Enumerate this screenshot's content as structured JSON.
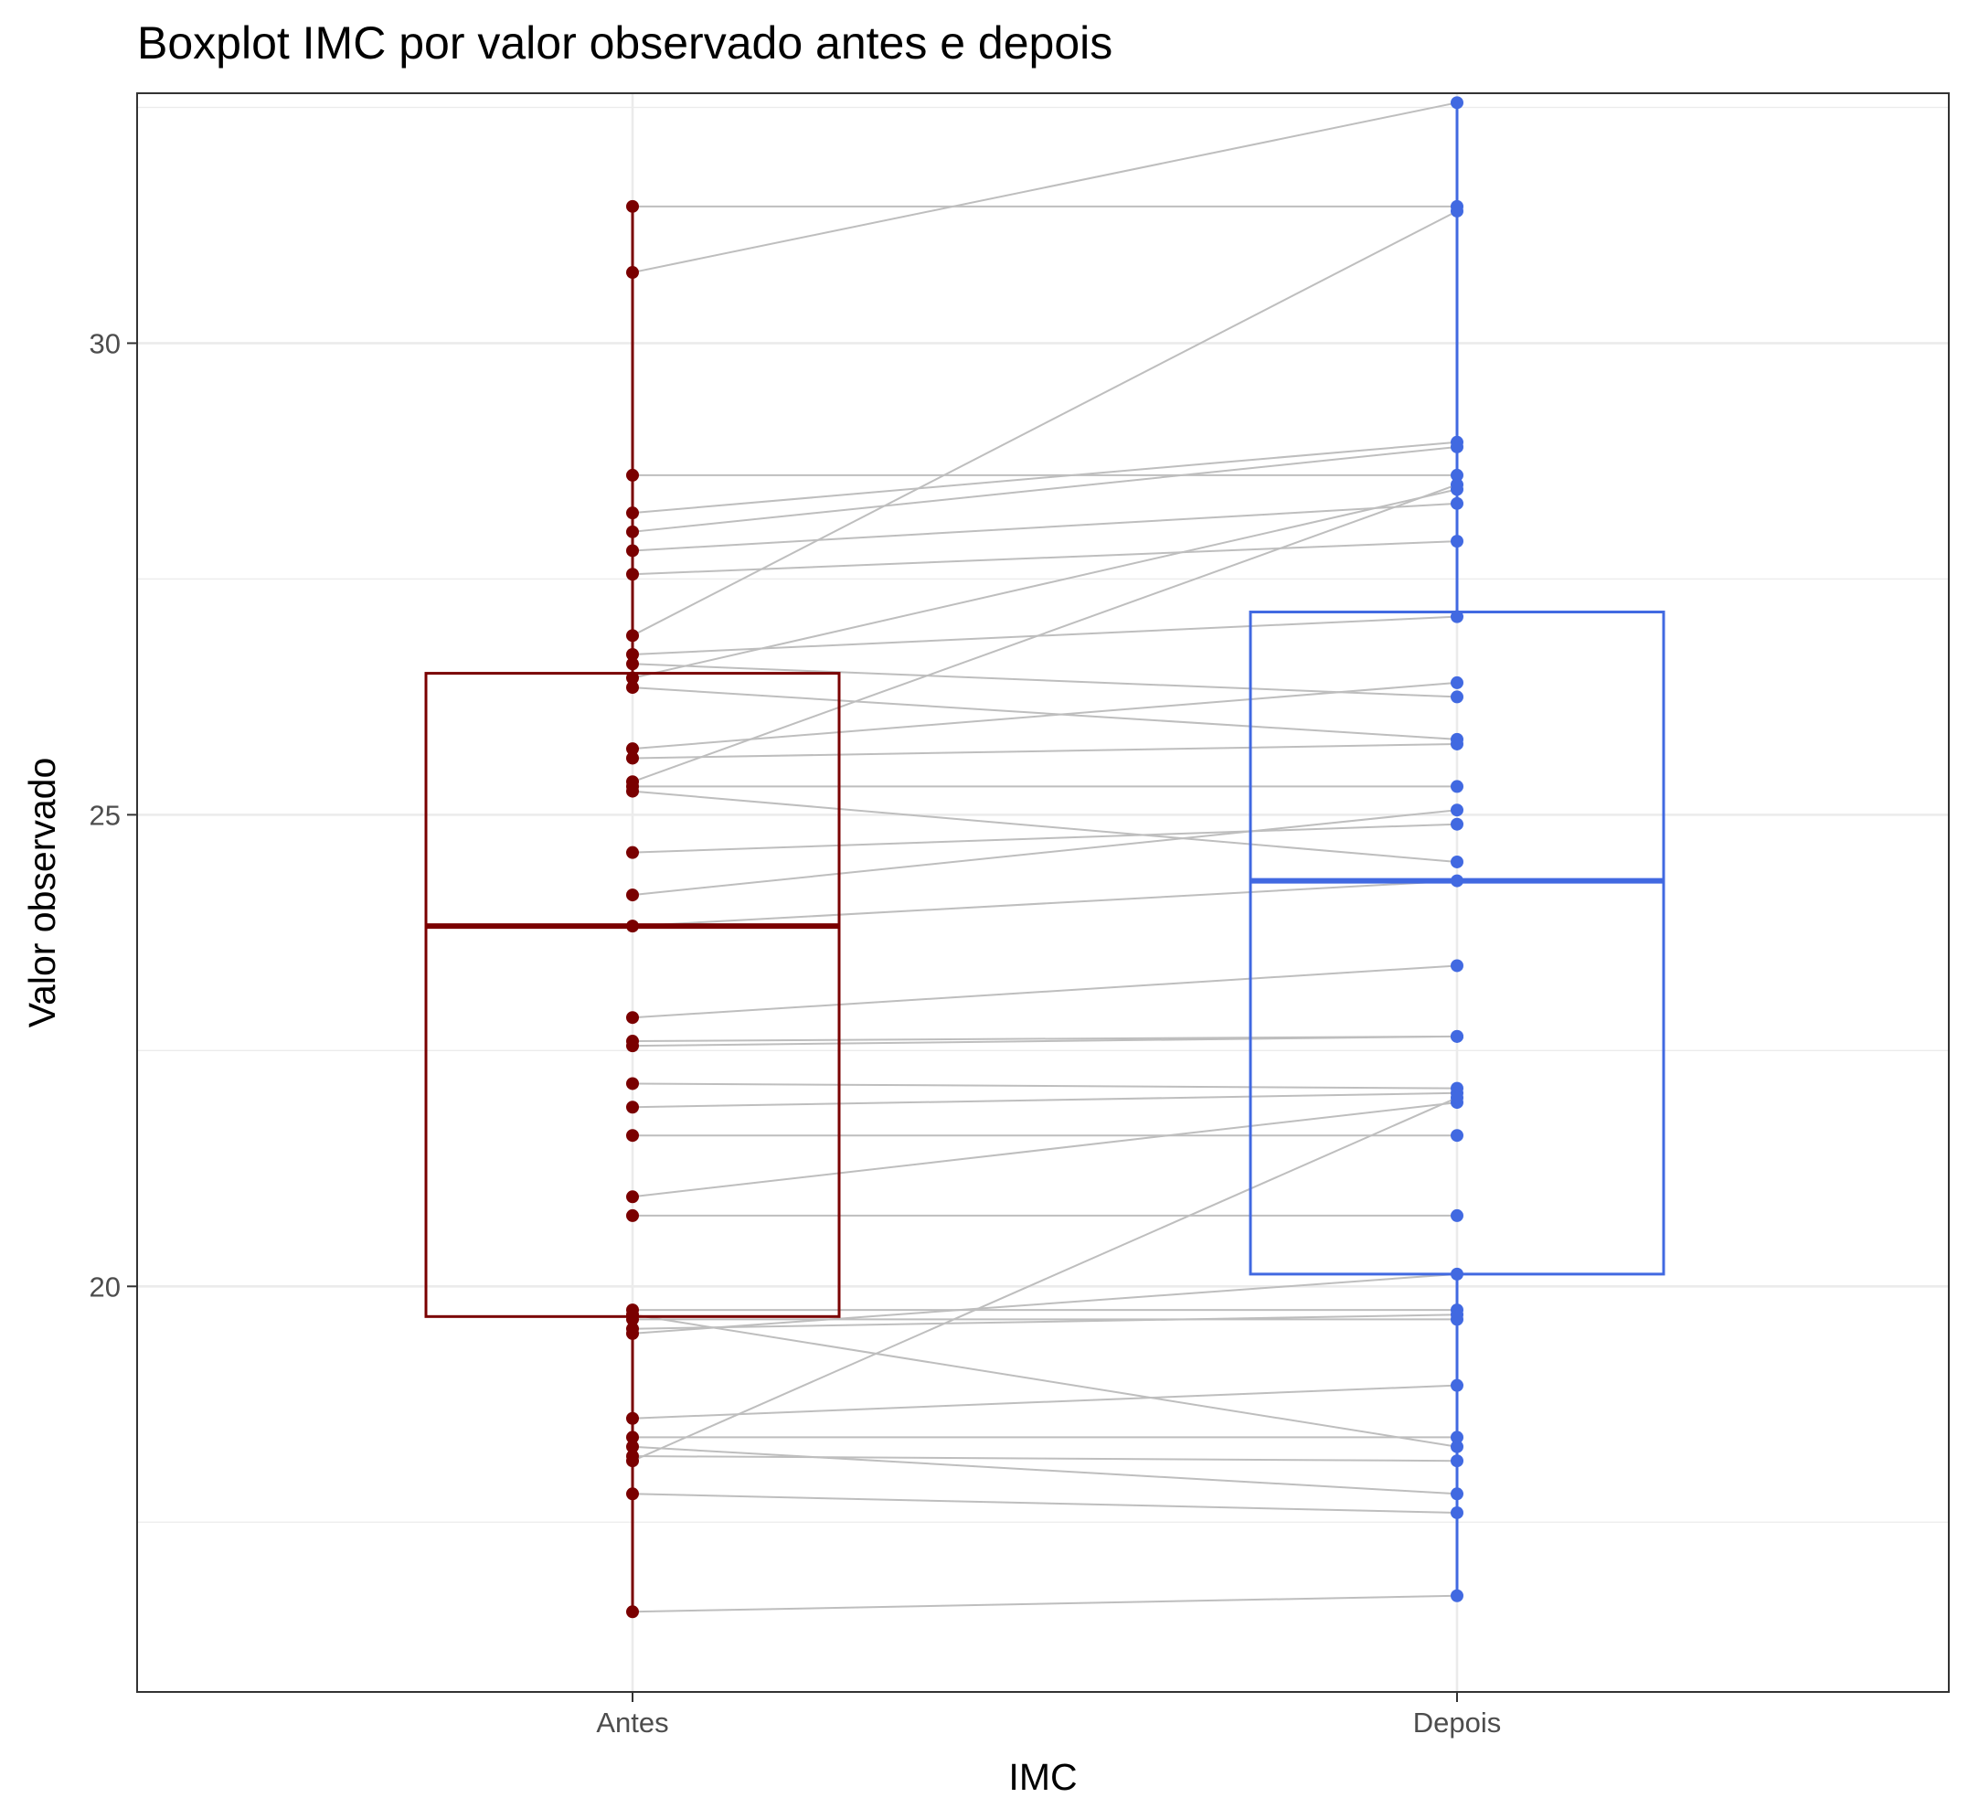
{
  "chart_data": {
    "type": "boxplot",
    "title": "Boxplot IMC por valor observado antes e depois",
    "xlabel": "IMC",
    "ylabel": "Valor observado",
    "categories": [
      "Antes",
      "Depois"
    ],
    "yticks": [
      20,
      25,
      30
    ],
    "ylim": [
      15.7,
      32.65
    ],
    "grid": true,
    "colors": {
      "Antes": "#7a0000",
      "Depois": "#4169e1",
      "lines": "#bebebe",
      "grid": "#ebebeb",
      "panel_border": "#333333"
    },
    "boxes": [
      {
        "name": "Antes",
        "whisker_low": 16.55,
        "q1": 19.68,
        "median": 23.82,
        "q3": 26.5,
        "whisker_high": 31.45
      },
      {
        "name": "Depois",
        "whisker_low": 16.72,
        "q1": 20.13,
        "median": 24.3,
        "q3": 27.15,
        "whisker_high": 32.55
      }
    ],
    "pairs": [
      [
        31.45,
        31.45
      ],
      [
        30.75,
        32.55
      ],
      [
        28.6,
        28.6
      ],
      [
        28.2,
        28.95
      ],
      [
        28.0,
        28.9
      ],
      [
        27.8,
        28.3
      ],
      [
        27.55,
        27.9
      ],
      [
        26.9,
        31.4
      ],
      [
        26.7,
        27.1
      ],
      [
        26.6,
        26.25
      ],
      [
        26.45,
        28.45
      ],
      [
        26.35,
        25.8
      ],
      [
        25.7,
        26.4
      ],
      [
        25.6,
        25.75
      ],
      [
        25.35,
        28.5
      ],
      [
        25.3,
        25.3
      ],
      [
        25.25,
        24.5
      ],
      [
        24.6,
        24.9
      ],
      [
        24.15,
        25.05
      ],
      [
        23.82,
        24.3
      ],
      [
        22.85,
        23.4
      ],
      [
        22.6,
        22.65
      ],
      [
        22.55,
        22.65
      ],
      [
        22.15,
        22.1
      ],
      [
        21.9,
        22.05
      ],
      [
        21.6,
        21.6
      ],
      [
        20.95,
        21.95
      ],
      [
        20.75,
        20.75
      ],
      [
        19.75,
        19.75
      ],
      [
        19.7,
        18.3
      ],
      [
        19.65,
        19.65
      ],
      [
        19.55,
        19.7
      ],
      [
        19.5,
        20.13
      ],
      [
        18.6,
        18.95
      ],
      [
        18.4,
        18.4
      ],
      [
        18.3,
        17.8
      ],
      [
        18.2,
        18.15
      ],
      [
        18.15,
        22.0
      ],
      [
        17.8,
        17.6
      ],
      [
        16.55,
        16.72
      ]
    ]
  }
}
